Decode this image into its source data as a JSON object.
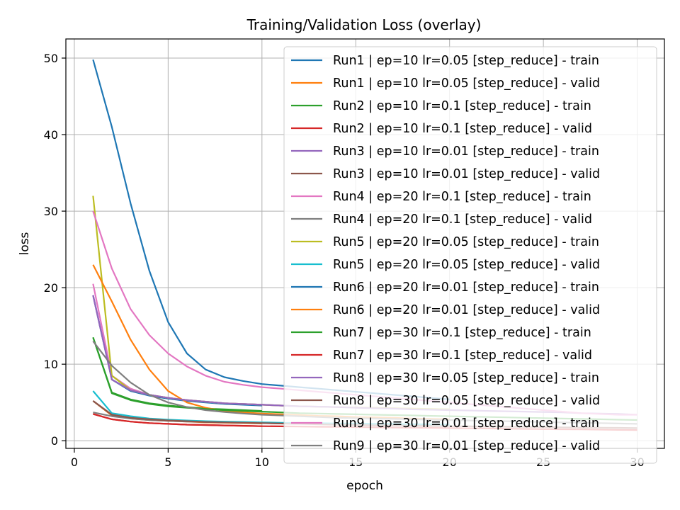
{
  "chart_data": {
    "type": "line",
    "title": "Training/Validation Loss (overlay)",
    "xlabel": "epoch",
    "ylabel": "loss",
    "xlim": [
      -0.45,
      31.45
    ],
    "ylim": [
      -1.0,
      52.5
    ],
    "xticks": [
      0,
      5,
      10,
      15,
      20,
      25,
      30
    ],
    "yticks": [
      0,
      10,
      20,
      30,
      40,
      50
    ],
    "grid": true,
    "legend_position": "upper-right",
    "series": [
      {
        "name": "Run1 | ep=10 lr=0.05 [step_reduce] - train",
        "color": "#1f77b4",
        "x": [
          1,
          2,
          3,
          4,
          5,
          6,
          7,
          8,
          9,
          10
        ],
        "y": [
          19.0,
          8.0,
          6.5,
          5.9,
          5.5,
          5.2,
          5.0,
          4.8,
          4.7,
          4.6
        ]
      },
      {
        "name": "Run1 | ep=10 lr=0.05 [step_reduce] - valid",
        "color": "#ff7f0e",
        "x": [
          1,
          2,
          3,
          4,
          5,
          6,
          7,
          8,
          9,
          10
        ],
        "y": [
          5.2,
          3.3,
          2.9,
          2.7,
          2.6,
          2.5,
          2.4,
          2.35,
          2.3,
          2.25
        ]
      },
      {
        "name": "Run2 | ep=10 lr=0.1 [step_reduce] - train",
        "color": "#2ca02c",
        "x": [
          1,
          2,
          3,
          4,
          5,
          6,
          7,
          8,
          9,
          10
        ],
        "y": [
          13.5,
          6.3,
          5.4,
          4.9,
          4.6,
          4.4,
          4.2,
          4.1,
          4.0,
          3.9
        ]
      },
      {
        "name": "Run2 | ep=10 lr=0.1 [step_reduce] - valid",
        "color": "#d62728",
        "x": [
          1,
          2,
          3,
          4,
          5,
          6,
          7,
          8,
          9,
          10
        ],
        "y": [
          3.5,
          2.8,
          2.5,
          2.3,
          2.2,
          2.1,
          2.05,
          2.0,
          1.95,
          1.9
        ]
      },
      {
        "name": "Run3 | ep=10 lr=0.01 [step_reduce] - train",
        "color": "#9467bd",
        "x": [
          1,
          2,
          3,
          4,
          5,
          6,
          7,
          8,
          9,
          10
        ],
        "y": [
          19.0,
          8.0,
          6.6,
          6.0,
          5.6,
          5.3,
          5.1,
          4.9,
          4.8,
          4.7
        ]
      },
      {
        "name": "Run3 | ep=10 lr=0.01 [step_reduce] - valid",
        "color": "#8c564b",
        "x": [
          1,
          2,
          3,
          4,
          5,
          6,
          7,
          8,
          9,
          10
        ],
        "y": [
          5.2,
          3.4,
          3.0,
          2.8,
          2.65,
          2.55,
          2.45,
          2.4,
          2.35,
          2.3
        ]
      },
      {
        "name": "Run4 | ep=20 lr=0.1 [step_reduce] - train",
        "color": "#e377c2",
        "x": [
          1,
          2,
          3,
          4,
          5,
          6,
          7,
          8,
          9,
          10,
          11,
          12,
          13,
          14,
          15,
          16,
          17,
          18,
          19,
          20
        ],
        "y": [
          20.5,
          8.5,
          6.8,
          6.0,
          5.6,
          5.3,
          5.1,
          4.9,
          4.8,
          4.7,
          4.6,
          4.5,
          4.45,
          4.4,
          4.35,
          4.3,
          4.25,
          4.2,
          4.15,
          4.1
        ]
      },
      {
        "name": "Run4 | ep=20 lr=0.1 [step_reduce] - valid",
        "color": "#7f7f7f",
        "x": [
          1,
          2,
          3,
          4,
          5,
          6,
          7,
          8,
          9,
          10,
          11,
          12,
          13,
          14,
          15,
          16,
          17,
          18,
          19,
          20
        ],
        "y": [
          3.7,
          3.2,
          2.9,
          2.7,
          2.6,
          2.5,
          2.45,
          2.4,
          2.35,
          2.3,
          2.25,
          2.2,
          2.2,
          2.15,
          2.15,
          2.1,
          2.1,
          2.05,
          2.05,
          2.0
        ]
      },
      {
        "name": "Run5 | ep=20 lr=0.05 [step_reduce] - train",
        "color": "#bcbd22",
        "x": [
          1,
          2,
          3,
          4,
          5,
          6,
          7,
          8,
          9,
          10,
          11,
          12,
          13,
          14,
          15,
          16,
          17,
          18,
          19,
          20
        ],
        "y": [
          32.0,
          8.5,
          6.6,
          6.0,
          5.6,
          5.3,
          5.1,
          4.9,
          4.8,
          4.7,
          4.6,
          4.5,
          4.45,
          4.4,
          4.35,
          4.3,
          4.25,
          4.2,
          4.15,
          4.1
        ]
      },
      {
        "name": "Run5 | ep=20 lr=0.05 [step_reduce] - valid",
        "color": "#17becf",
        "x": [
          1,
          2,
          3,
          4,
          5,
          6,
          7,
          8,
          9,
          10,
          11,
          12,
          13,
          14,
          15,
          16,
          17,
          18,
          19,
          20
        ],
        "y": [
          6.5,
          3.6,
          3.2,
          2.9,
          2.75,
          2.65,
          2.55,
          2.5,
          2.45,
          2.4,
          2.35,
          2.3,
          2.3,
          2.25,
          2.25,
          2.2,
          2.2,
          2.15,
          2.15,
          2.1
        ]
      },
      {
        "name": "Run6 | ep=20 lr=0.01 [step_reduce] - train",
        "color": "#1f77b4",
        "x": [
          1,
          2,
          3,
          4,
          5,
          6,
          7,
          8,
          9,
          10,
          11,
          12,
          13,
          14,
          15,
          16,
          17,
          18,
          19,
          20
        ],
        "y": [
          49.8,
          41.0,
          31.0,
          22.2,
          15.5,
          11.4,
          9.3,
          8.3,
          7.8,
          7.4,
          7.2,
          7.0,
          6.8,
          6.6,
          6.4,
          6.2,
          6.0,
          5.8,
          5.6,
          5.4
        ]
      },
      {
        "name": "Run6 | ep=20 lr=0.01 [step_reduce] - valid",
        "color": "#ff7f0e",
        "x": [
          1,
          2,
          3,
          4,
          5,
          6,
          7,
          8,
          9,
          10,
          11,
          12,
          13,
          14,
          15,
          16,
          17,
          18,
          19,
          20
        ],
        "y": [
          23.0,
          18.2,
          13.2,
          9.3,
          6.5,
          5.0,
          4.3,
          3.9,
          3.7,
          3.55,
          3.45,
          3.35,
          3.25,
          3.2,
          3.1,
          3.05,
          3.0,
          2.9,
          2.85,
          2.8
        ]
      },
      {
        "name": "Run7 | ep=30 lr=0.1 [step_reduce] - train",
        "color": "#2ca02c",
        "x": [
          1,
          2,
          3,
          4,
          5,
          6,
          7,
          8,
          9,
          10,
          11,
          12,
          13,
          14,
          15,
          16,
          17,
          18,
          19,
          20,
          21,
          22,
          23,
          24,
          25,
          26,
          27,
          28,
          29,
          30
        ],
        "y": [
          13.5,
          6.2,
          5.3,
          4.8,
          4.5,
          4.3,
          4.15,
          4.0,
          3.9,
          3.8,
          3.7,
          3.6,
          3.55,
          3.5,
          3.45,
          3.4,
          3.35,
          3.3,
          3.25,
          3.2,
          3.15,
          3.1,
          3.05,
          3.0,
          2.95,
          2.9,
          2.85,
          2.8,
          2.75,
          2.7
        ]
      },
      {
        "name": "Run7 | ep=30 lr=0.1 [step_reduce] - valid",
        "color": "#d62728",
        "x": [
          1,
          2,
          3,
          4,
          5,
          6,
          7,
          8,
          9,
          10,
          11,
          12,
          13,
          14,
          15,
          16,
          17,
          18,
          19,
          20,
          21,
          22,
          23,
          24,
          25,
          26,
          27,
          28,
          29,
          30
        ],
        "y": [
          3.5,
          2.8,
          2.5,
          2.3,
          2.2,
          2.1,
          2.05,
          2.0,
          1.95,
          1.9,
          1.88,
          1.85,
          1.82,
          1.8,
          1.78,
          1.75,
          1.72,
          1.7,
          1.68,
          1.65,
          1.62,
          1.6,
          1.57,
          1.55,
          1.52,
          1.5,
          1.48,
          1.45,
          1.42,
          1.4
        ]
      },
      {
        "name": "Run8 | ep=30 lr=0.05 [step_reduce] - train",
        "color": "#9467bd",
        "x": [
          1,
          2,
          3,
          4,
          5,
          6,
          7,
          8,
          9,
          10,
          11,
          12,
          13,
          14,
          15,
          16,
          17,
          18,
          19,
          20,
          21,
          22,
          23,
          24,
          25,
          26,
          27,
          28,
          29,
          30
        ],
        "y": [
          19.0,
          8.0,
          6.6,
          6.0,
          5.6,
          5.3,
          5.1,
          4.9,
          4.8,
          4.7,
          4.6,
          4.5,
          4.45,
          4.4,
          4.3,
          4.25,
          4.2,
          4.1,
          4.05,
          4.0,
          3.95,
          3.9,
          3.85,
          3.8,
          3.75,
          3.7,
          3.6,
          3.55,
          3.5,
          3.4
        ]
      },
      {
        "name": "Run8 | ep=30 lr=0.05 [step_reduce] - valid",
        "color": "#8c564b",
        "x": [
          1,
          2,
          3,
          4,
          5,
          6,
          7,
          8,
          9,
          10,
          11,
          12,
          13,
          14,
          15,
          16,
          17,
          18,
          19,
          20,
          21,
          22,
          23,
          24,
          25,
          26,
          27,
          28,
          29,
          30
        ],
        "y": [
          5.2,
          3.4,
          3.0,
          2.8,
          2.65,
          2.55,
          2.45,
          2.4,
          2.35,
          2.3,
          2.25,
          2.2,
          2.15,
          2.1,
          2.05,
          2.0,
          1.98,
          1.95,
          1.92,
          1.9,
          1.88,
          1.85,
          1.82,
          1.8,
          1.78,
          1.75,
          1.72,
          1.7,
          1.68,
          1.65
        ]
      },
      {
        "name": "Run9 | ep=30 lr=0.01 [step_reduce] - train",
        "color": "#e377c2",
        "x": [
          1,
          2,
          3,
          4,
          5,
          6,
          7,
          8,
          9,
          10,
          11,
          12,
          13,
          14,
          15,
          16,
          17,
          18,
          19,
          20,
          21,
          22,
          23,
          24,
          25,
          26,
          27,
          28,
          29,
          30
        ],
        "y": [
          30.0,
          22.5,
          17.2,
          13.8,
          11.4,
          9.7,
          8.5,
          7.7,
          7.3,
          7.0,
          6.8,
          6.6,
          6.4,
          6.2,
          6.0,
          5.8,
          5.6,
          5.4,
          5.2,
          5.0,
          4.8,
          4.6,
          4.4,
          4.2,
          4.0,
          3.8,
          3.6,
          3.5,
          3.4,
          3.4
        ]
      },
      {
        "name": "Run9 | ep=30 lr=0.01 [step_reduce] - valid",
        "color": "#7f7f7f",
        "x": [
          1,
          2,
          3,
          4,
          5,
          6,
          7,
          8,
          9,
          10,
          11,
          12,
          13,
          14,
          15,
          16,
          17,
          18,
          19,
          20,
          21,
          22,
          23,
          24,
          25,
          26,
          27,
          28,
          29,
          30
        ],
        "y": [
          13.0,
          9.8,
          7.6,
          6.0,
          5.0,
          4.4,
          4.0,
          3.75,
          3.55,
          3.4,
          3.3,
          3.2,
          3.1,
          3.0,
          2.95,
          2.9,
          2.85,
          2.8,
          2.75,
          2.7,
          2.65,
          2.6,
          2.55,
          2.5,
          2.45,
          2.4,
          2.35,
          2.3,
          2.25,
          2.2
        ]
      }
    ]
  }
}
